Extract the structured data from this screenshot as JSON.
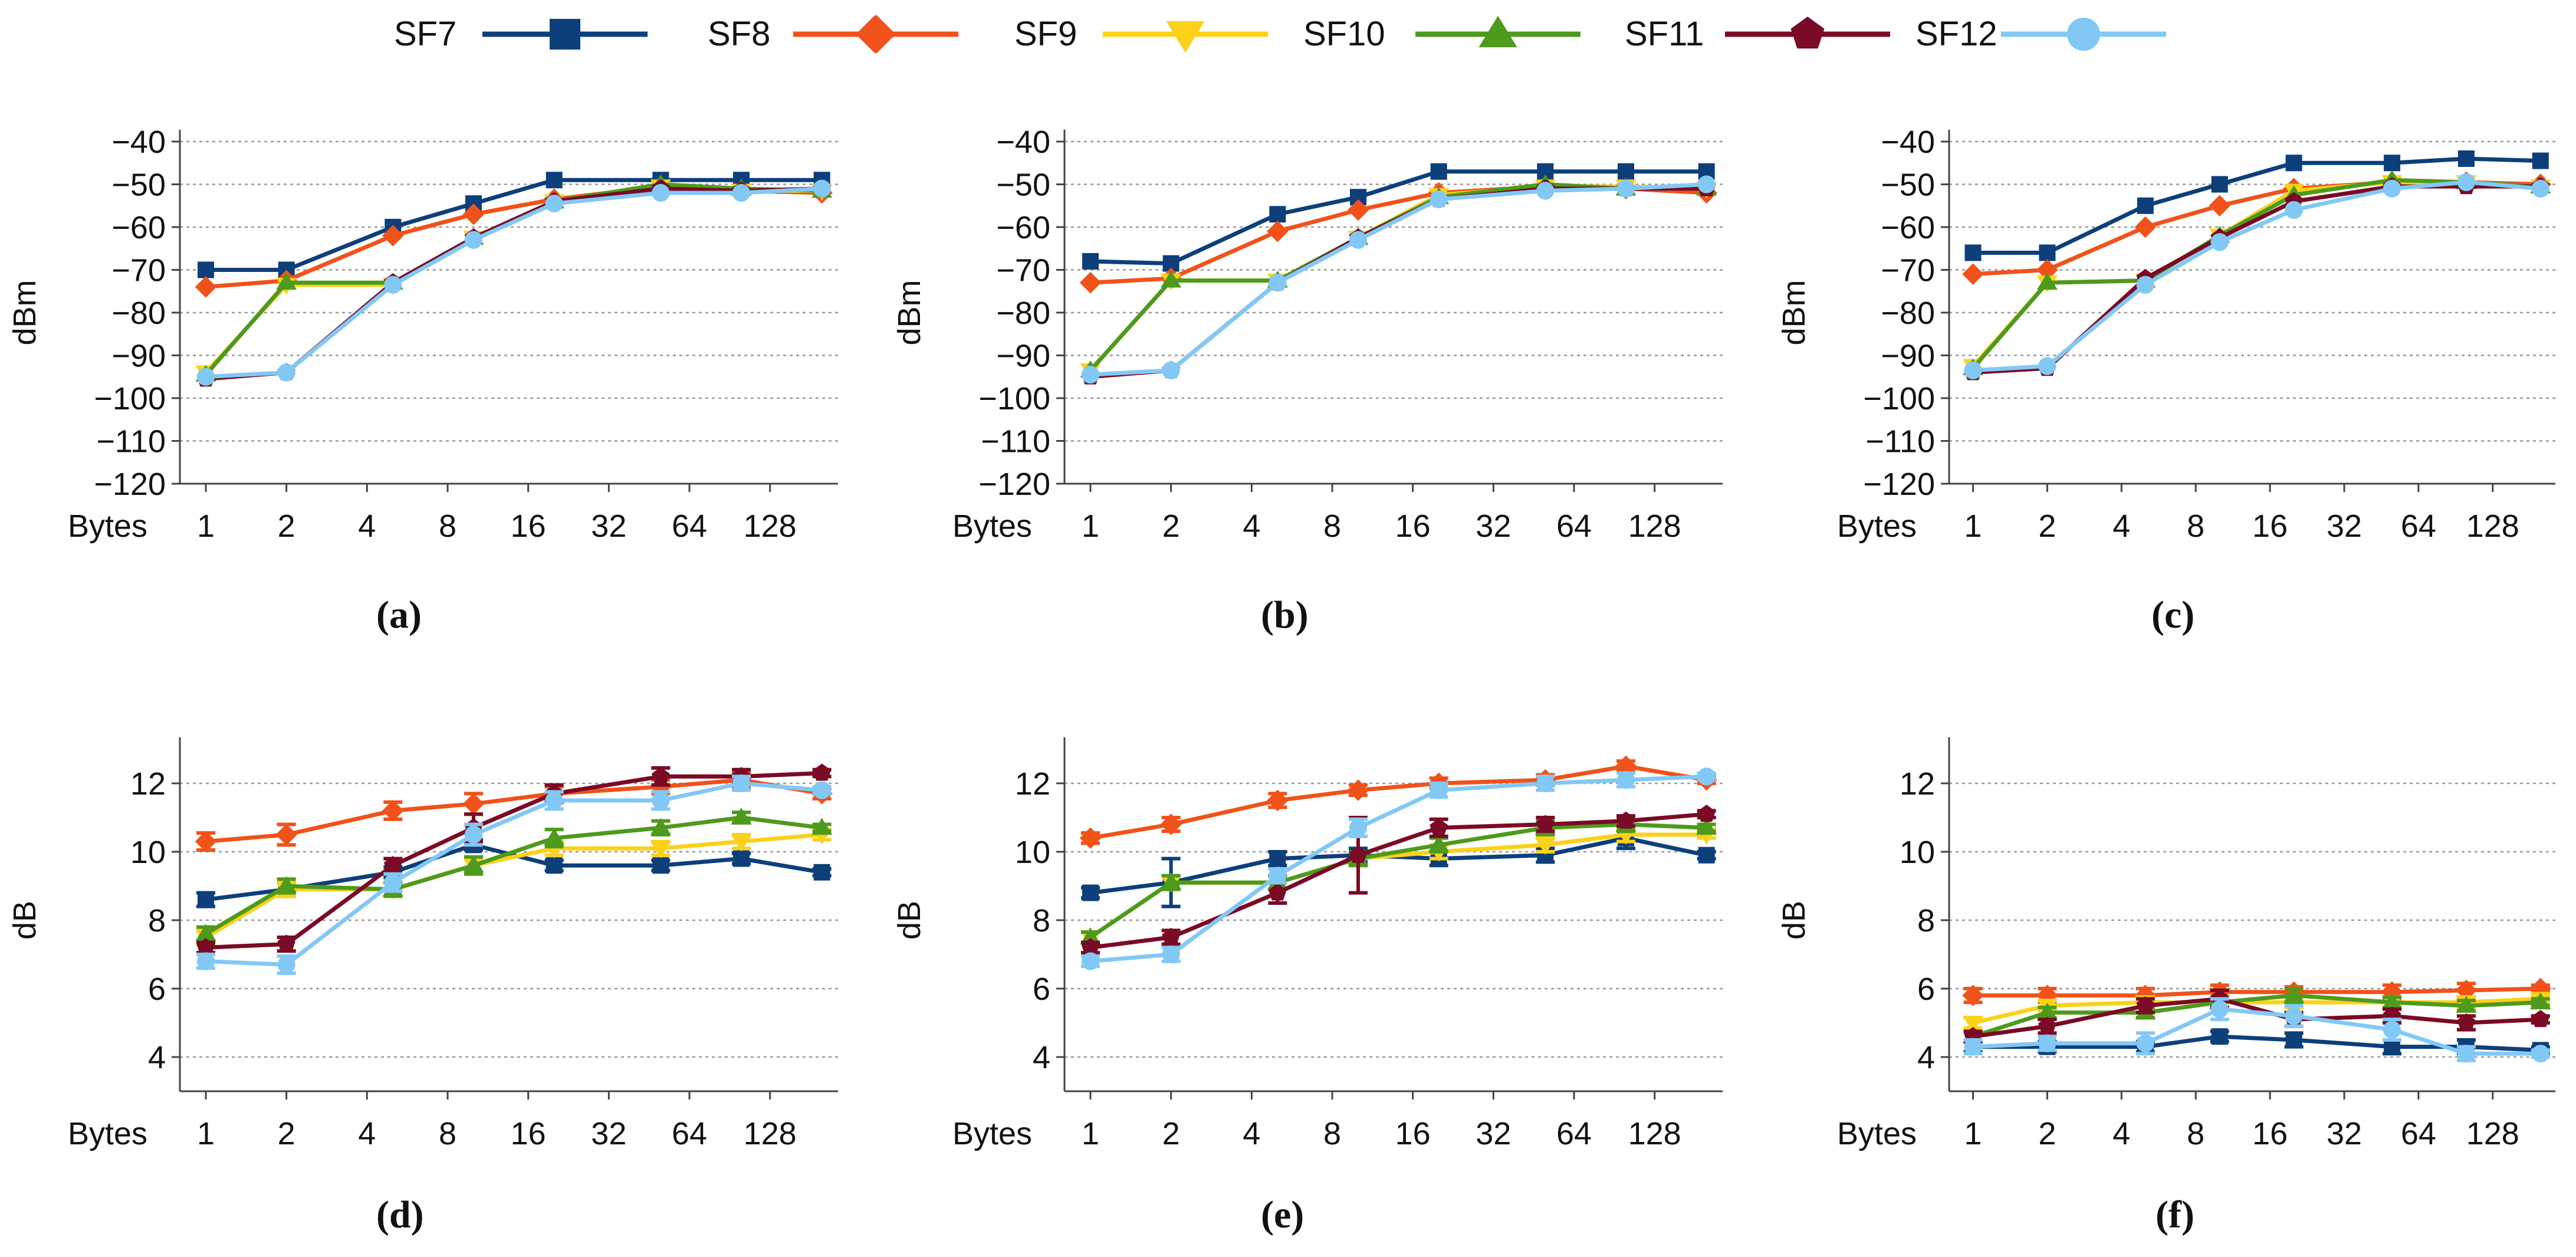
{
  "legend": {
    "entries": [
      {
        "name": "SF7",
        "color": "#0d3f7a",
        "marker": "square"
      },
      {
        "name": "SF8",
        "color": "#f0521a",
        "marker": "diamond"
      },
      {
        "name": "SF9",
        "color": "#fbd11a",
        "marker": "triangle-down"
      },
      {
        "name": "SF10",
        "color": "#4e9a1c",
        "marker": "triangle-up"
      },
      {
        "name": "SF11",
        "color": "#7a0a25",
        "marker": "pentagon"
      },
      {
        "name": "SF12",
        "color": "#82c8f5",
        "marker": "circle"
      }
    ]
  },
  "chart_data": [
    {
      "type": "line",
      "panel_label": "a",
      "caption": "(a)",
      "xlabel": "Bytes",
      "ylabel": "dBm",
      "x_ticks": [
        "1",
        "2",
        "4",
        "8",
        "16",
        "32",
        "64",
        "128"
      ],
      "x": [
        1,
        2,
        5,
        10,
        20,
        50,
        100,
        200
      ],
      "ylim": [
        -120,
        -40
      ],
      "y_ticks": [
        -40,
        -50,
        -60,
        -70,
        -80,
        -90,
        -100,
        -110,
        -120
      ],
      "series": [
        {
          "name": "SF7",
          "values": [
            -70,
            -70,
            -60,
            -54.5,
            -49,
            -49,
            -49,
            -49
          ]
        },
        {
          "name": "SF8",
          "values": [
            -74,
            -72.5,
            -62,
            -57,
            -53.5,
            -50.5,
            -51.5,
            -52
          ]
        },
        {
          "name": "SF9",
          "values": [
            -94,
            -73.5,
            -73.5,
            -62.5,
            -54,
            -50.5,
            -51.5,
            -51.5
          ]
        },
        {
          "name": "SF10",
          "values": [
            -94.5,
            -73,
            -73,
            -62.5,
            -54,
            -50,
            -51,
            -51.5
          ]
        },
        {
          "name": "SF11",
          "values": [
            -95.5,
            -94,
            -73,
            -62.5,
            -54,
            -51,
            -51.5,
            -51
          ]
        },
        {
          "name": "SF12",
          "values": [
            -95,
            -94,
            -73.5,
            -63,
            -54.5,
            -52,
            -52,
            -51
          ]
        }
      ]
    },
    {
      "type": "line",
      "panel_label": "b",
      "caption": "(b)",
      "xlabel": "Bytes",
      "ylabel": "dBm",
      "x_ticks": [
        "1",
        "2",
        "4",
        "8",
        "16",
        "32",
        "64",
        "128"
      ],
      "x": [
        1,
        2,
        5,
        10,
        20,
        50,
        100,
        200
      ],
      "ylim": [
        -120,
        -40
      ],
      "y_ticks": [
        -40,
        -50,
        -60,
        -70,
        -80,
        -90,
        -100,
        -110,
        -120
      ],
      "series": [
        {
          "name": "SF7",
          "values": [
            -68,
            -68.5,
            -57,
            -53,
            -47,
            -47,
            -47,
            -47
          ]
        },
        {
          "name": "SF8",
          "values": [
            -73,
            -72,
            -61,
            -56,
            -52,
            -50.5,
            -51,
            -52
          ]
        },
        {
          "name": "SF9",
          "values": [
            -93.5,
            -72.5,
            -72.5,
            -62.5,
            -52.5,
            -50.5,
            -50.5,
            -51
          ]
        },
        {
          "name": "SF10",
          "values": [
            -93.5,
            -72.5,
            -72.5,
            -62.5,
            -53,
            -50,
            -51,
            -51
          ]
        },
        {
          "name": "SF11",
          "values": [
            -95,
            -93.5,
            -73,
            -62.5,
            -53.5,
            -51,
            -51,
            -51
          ]
        },
        {
          "name": "SF12",
          "values": [
            -94.5,
            -93.5,
            -73,
            -63,
            -53.5,
            -51.5,
            -51,
            -50
          ]
        }
      ]
    },
    {
      "type": "line",
      "panel_label": "c",
      "caption": "(c)",
      "xlabel": "Bytes",
      "ylabel": "dBm",
      "x_ticks": [
        "1",
        "2",
        "4",
        "8",
        "16",
        "32",
        "64",
        "128"
      ],
      "x": [
        1,
        2,
        5,
        10,
        20,
        50,
        100,
        200
      ],
      "ylim": [
        -120,
        -40
      ],
      "y_ticks": [
        -40,
        -50,
        -60,
        -70,
        -80,
        -90,
        -100,
        -110,
        -120
      ],
      "series": [
        {
          "name": "SF7",
          "values": [
            -66,
            -66,
            -55,
            -50,
            -45,
            -45,
            -44,
            -44.5
          ]
        },
        {
          "name": "SF8",
          "values": [
            -71,
            -70,
            -60,
            -55,
            -51,
            -49.5,
            -49.5,
            -50
          ]
        },
        {
          "name": "SF9",
          "values": [
            -92.5,
            -73,
            -72.5,
            -62,
            -51.5,
            -49.5,
            -49.5,
            -50.5
          ]
        },
        {
          "name": "SF10",
          "values": [
            -93,
            -73,
            -72.5,
            -62,
            -52.5,
            -49,
            -49.5,
            -50.5
          ]
        },
        {
          "name": "SF11",
          "values": [
            -94,
            -93,
            -72,
            -62.5,
            -54,
            -50.5,
            -50.5,
            -50.5
          ]
        },
        {
          "name": "SF12",
          "values": [
            -93.5,
            -92.5,
            -73.5,
            -63.5,
            -56,
            -51,
            -49.5,
            -51
          ]
        }
      ]
    },
    {
      "type": "line",
      "panel_label": "d",
      "caption": "(d)",
      "xlabel": "Bytes",
      "ylabel": "dB",
      "x_ticks": [
        "1",
        "2",
        "4",
        "8",
        "16",
        "32",
        "64",
        "128"
      ],
      "x": [
        1,
        2,
        5,
        10,
        20,
        50,
        100,
        200
      ],
      "ylim": [
        3,
        13
      ],
      "y_ticks": [
        4,
        6,
        8,
        10,
        12
      ],
      "error_bars": true,
      "series": [
        {
          "name": "SF7",
          "values": [
            8.6,
            8.9,
            9.4,
            10.2,
            9.6,
            9.6,
            9.8,
            9.4
          ],
          "errors": [
            0.2,
            0.2,
            0.15,
            0.15,
            0.15,
            0.15,
            0.15,
            0.1
          ]
        },
        {
          "name": "SF8",
          "values": [
            10.3,
            10.5,
            11.2,
            11.4,
            11.7,
            11.9,
            12.1,
            11.7
          ],
          "errors": [
            0.25,
            0.3,
            0.25,
            0.3,
            0.2,
            0.2,
            0.2,
            0.15
          ]
        },
        {
          "name": "SF9",
          "values": [
            7.5,
            8.9,
            8.9,
            9.6,
            10.1,
            10.1,
            10.3,
            10.5
          ],
          "errors": [
            0.2,
            0.2,
            0.2,
            0.2,
            0.2,
            0.2,
            0.2,
            0.15
          ]
        },
        {
          "name": "SF10",
          "values": [
            7.6,
            9.0,
            8.9,
            9.6,
            10.4,
            10.7,
            11.0,
            10.7
          ],
          "errors": [
            0.2,
            0.2,
            0.2,
            0.25,
            0.25,
            0.2,
            0.15,
            0.1
          ]
        },
        {
          "name": "SF11",
          "values": [
            7.2,
            7.3,
            9.6,
            10.7,
            11.7,
            12.2,
            12.2,
            12.3
          ],
          "errors": [
            0.15,
            0.2,
            0.2,
            0.4,
            0.25,
            0.25,
            0.2,
            0.1
          ]
        },
        {
          "name": "SF12",
          "values": [
            6.8,
            6.7,
            9.1,
            10.5,
            11.5,
            11.5,
            12.0,
            11.8
          ],
          "errors": [
            0.2,
            0.25,
            0.25,
            0.3,
            0.25,
            0.25,
            0.2,
            0.1
          ]
        }
      ]
    },
    {
      "type": "line",
      "panel_label": "e",
      "caption": "(e)",
      "xlabel": "Bytes",
      "ylabel": "dB",
      "x_ticks": [
        "1",
        "2",
        "4",
        "8",
        "16",
        "32",
        "64",
        "128"
      ],
      "x": [
        1,
        2,
        5,
        10,
        20,
        50,
        100,
        200
      ],
      "ylim": [
        3,
        13
      ],
      "y_ticks": [
        4,
        6,
        8,
        10,
        12
      ],
      "error_bars": true,
      "series": [
        {
          "name": "SF7",
          "values": [
            8.8,
            9.1,
            9.8,
            9.9,
            9.8,
            9.9,
            10.4,
            9.9
          ],
          "errors": [
            0.15,
            0.7,
            0.2,
            0.2,
            0.2,
            0.2,
            0.3,
            0.1
          ]
        },
        {
          "name": "SF8",
          "values": [
            10.4,
            10.8,
            11.5,
            11.8,
            12.0,
            12.1,
            12.5,
            12.1
          ],
          "errors": [
            0.15,
            0.2,
            0.2,
            0.15,
            0.15,
            0.15,
            0.15,
            0.1
          ]
        },
        {
          "name": "SF9",
          "values": [
            7.5,
            9.1,
            9.1,
            9.8,
            10.0,
            10.2,
            10.5,
            10.5
          ],
          "errors": [
            0.15,
            0.2,
            0.2,
            0.2,
            0.2,
            0.2,
            0.2,
            0.1
          ]
        },
        {
          "name": "SF10",
          "values": [
            7.5,
            9.1,
            9.1,
            9.8,
            10.2,
            10.7,
            10.8,
            10.7
          ],
          "errors": [
            0.15,
            0.2,
            0.2,
            0.2,
            0.2,
            0.2,
            0.2,
            0.1
          ]
        },
        {
          "name": "SF11",
          "values": [
            7.2,
            7.5,
            8.8,
            9.9,
            10.7,
            10.8,
            10.9,
            11.1
          ],
          "errors": [
            0.15,
            0.2,
            0.3,
            1.1,
            0.25,
            0.2,
            0.15,
            0.1
          ]
        },
        {
          "name": "SF12",
          "values": [
            6.8,
            7.0,
            9.3,
            10.7,
            11.8,
            12.0,
            12.1,
            12.2
          ],
          "errors": [
            0.15,
            0.2,
            0.2,
            0.25,
            0.2,
            0.2,
            0.2,
            0.1
          ]
        }
      ]
    },
    {
      "type": "line",
      "panel_label": "f",
      "caption": "(f)",
      "xlabel": "Bytes",
      "ylabel": "dB",
      "x_ticks": [
        "1",
        "2",
        "4",
        "8",
        "16",
        "32",
        "64",
        "128"
      ],
      "x": [
        1,
        2,
        5,
        10,
        20,
        50,
        100,
        200
      ],
      "ylim": [
        3,
        13
      ],
      "y_ticks": [
        4,
        6,
        8,
        10,
        12
      ],
      "error_bars": true,
      "series": [
        {
          "name": "SF7",
          "values": [
            4.3,
            4.3,
            4.3,
            4.6,
            4.5,
            4.3,
            4.3,
            4.2
          ],
          "errors": [
            0.15,
            0.15,
            0.15,
            0.15,
            0.2,
            0.2,
            0.2,
            0.1
          ]
        },
        {
          "name": "SF8",
          "values": [
            5.8,
            5.8,
            5.8,
            5.9,
            5.9,
            5.9,
            5.95,
            6.0
          ],
          "errors": [
            0.2,
            0.2,
            0.2,
            0.2,
            0.15,
            0.2,
            0.2,
            0.1
          ]
        },
        {
          "name": "SF9",
          "values": [
            5.0,
            5.5,
            5.6,
            5.6,
            5.6,
            5.6,
            5.6,
            5.7
          ],
          "errors": [
            0.15,
            0.15,
            0.15,
            0.15,
            0.15,
            0.15,
            0.15,
            0.1
          ]
        },
        {
          "name": "SF10",
          "values": [
            4.6,
            5.3,
            5.3,
            5.6,
            5.8,
            5.6,
            5.5,
            5.6
          ],
          "errors": [
            0.15,
            0.15,
            0.15,
            0.15,
            0.2,
            0.15,
            0.15,
            0.1
          ]
        },
        {
          "name": "SF11",
          "values": [
            4.6,
            4.9,
            5.5,
            5.7,
            5.1,
            5.2,
            5.0,
            5.1
          ],
          "errors": [
            0.15,
            0.2,
            0.2,
            0.25,
            0.2,
            0.2,
            0.2,
            0.1
          ]
        },
        {
          "name": "SF12",
          "values": [
            4.3,
            4.4,
            4.4,
            5.4,
            5.2,
            4.8,
            4.1,
            4.1
          ],
          "errors": [
            0.2,
            0.2,
            0.3,
            0.3,
            0.3,
            0.3,
            0.2,
            0.1
          ]
        }
      ]
    }
  ]
}
